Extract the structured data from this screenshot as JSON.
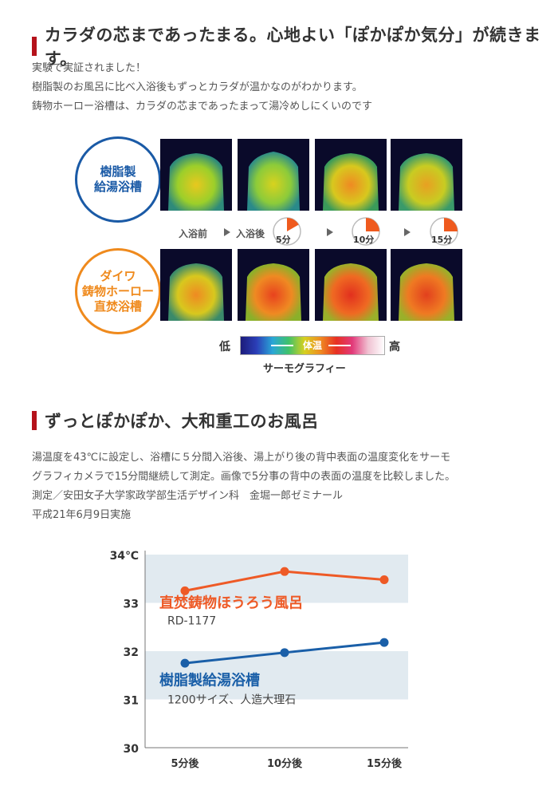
{
  "section1": {
    "heading": "カラダの芯まであったまる。心地よい「ぽかぽか気分」が続きます。",
    "lines": [
      "実験で実証されました！",
      "樹脂製のお風呂に比べ入浴後もずっとカラダが温かなのがわかります。",
      "鋳物ホーロー浴槽は、カラダの芯まであったまって湯冷めしにくいのです"
    ]
  },
  "thermo": {
    "resin_label_1": "樹脂製",
    "resin_label_2": "給湯浴槽",
    "daiwa_label_1": "ダイワ",
    "daiwa_label_2": "鋳物ホーロー",
    "daiwa_label_3": "直焚浴槽",
    "before": "入浴前",
    "after": "入浴後",
    "t5": "5分",
    "t10": "10分",
    "t15": "15分",
    "low": "低",
    "high": "高",
    "scale_mid": "体温",
    "scale_caption": "サーモグラフィー",
    "colors": {
      "blue": "#1a5aa6",
      "orange": "#ef8a1d"
    }
  },
  "section2": {
    "heading": "ずっとぽかぽか、大和重工のお風呂",
    "lines": [
      "湯温度を43℃に設定し、浴槽に５分間入浴後、湯上がり後の背中表面の温度変化をサーモ",
      "グラフィカメラで15分間継続して測定。画像で5分事の背中の表面の温度を比較しました。",
      "測定／安田女子大学家政学部生活デザイン科　金堀一郎ゼミナール",
      "平成21年6月9日実施"
    ]
  },
  "chart_data": {
    "type": "line",
    "categories": [
      "5分後",
      "10分後",
      "15分後"
    ],
    "ylim": [
      30,
      34
    ],
    "yticks": [
      "30",
      "31",
      "32",
      "33",
      "34℃"
    ],
    "series": [
      {
        "name": "直焚鋳物ほうろう風呂",
        "sublabel": "RD-1177",
        "color": "#ee5a26",
        "values": [
          33.25,
          33.65,
          33.48
        ]
      },
      {
        "name": "樹脂製給湯浴槽",
        "sublabel": "1200サイズ、人造大理石",
        "color": "#1a5fa8",
        "values": [
          31.75,
          31.97,
          32.18
        ]
      }
    ]
  }
}
